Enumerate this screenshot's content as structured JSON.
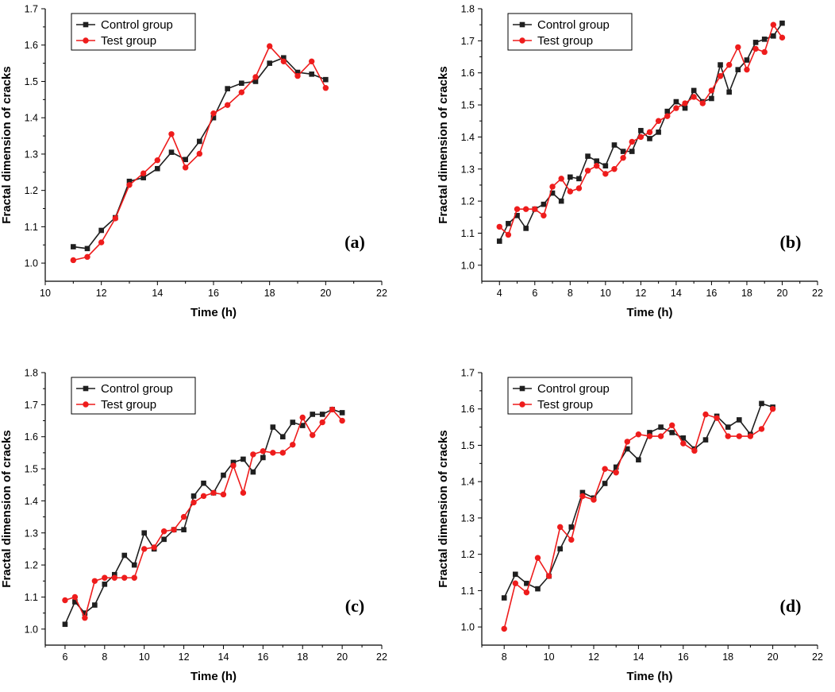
{
  "figure": {
    "background": "#ffffff"
  },
  "chart_data": [
    {
      "id": "a",
      "type": "line",
      "panel_label": "(a)",
      "xlabel": "Time (h)",
      "ylabel": "Fractal dimension of cracks",
      "xlim": [
        10,
        22
      ],
      "ylim": [
        0.95,
        1.7
      ],
      "xticks": [
        10,
        12,
        14,
        16,
        18,
        20,
        22
      ],
      "yticks": [
        1.0,
        1.1,
        1.2,
        1.3,
        1.4,
        1.5,
        1.6,
        1.7
      ],
      "ytick_labels": [
        "1.0",
        "1.1",
        "1.2",
        "1.3",
        "1.4",
        "1.5",
        "1.6",
        "1.7"
      ],
      "legend_position": "top-left",
      "series": [
        {
          "name": "Control group",
          "color": "#1f1f1f",
          "marker": "square",
          "x": [
            11,
            11.5,
            12,
            12.5,
            13,
            13.5,
            14,
            14.5,
            15,
            15.5,
            16,
            16.5,
            17,
            17.5,
            18,
            18.5,
            19,
            19.5,
            20
          ],
          "y": [
            1.045,
            1.04,
            1.09,
            1.125,
            1.225,
            1.235,
            1.26,
            1.305,
            1.285,
            1.335,
            1.4,
            1.48,
            1.495,
            1.5,
            1.55,
            1.565,
            1.525,
            1.52,
            1.505
          ]
        },
        {
          "name": "Test group",
          "color": "#ee1c1c",
          "marker": "circle",
          "x": [
            11,
            11.5,
            12,
            12.5,
            13,
            13.5,
            14,
            14.5,
            15,
            15.5,
            16,
            16.5,
            17,
            17.5,
            18,
            18.5,
            19,
            19.5,
            20
          ],
          "y": [
            1.008,
            1.017,
            1.057,
            1.123,
            1.215,
            1.247,
            1.283,
            1.355,
            1.263,
            1.301,
            1.412,
            1.435,
            1.47,
            1.512,
            1.597,
            1.555,
            1.515,
            1.555,
            1.482
          ]
        }
      ]
    },
    {
      "id": "b",
      "type": "line",
      "panel_label": "(b)",
      "xlabel": "Time (h)",
      "ylabel": "Fractal dimension of cracks",
      "xlim": [
        3,
        22
      ],
      "ylim": [
        0.95,
        1.8
      ],
      "xticks": [
        4,
        6,
        8,
        10,
        12,
        14,
        16,
        18,
        20,
        22
      ],
      "yticks": [
        1.0,
        1.1,
        1.2,
        1.3,
        1.4,
        1.5,
        1.6,
        1.7,
        1.8
      ],
      "ytick_labels": [
        "1.0",
        "1.1",
        "1.2",
        "1.3",
        "1.4",
        "1.5",
        "1.6",
        "1.7",
        "1.8"
      ],
      "legend_position": "top-left",
      "series": [
        {
          "name": "Control group",
          "color": "#1f1f1f",
          "marker": "square",
          "x": [
            4,
            4.5,
            5,
            5.5,
            6,
            6.5,
            7,
            7.5,
            8,
            8.5,
            9,
            9.5,
            10,
            10.5,
            11,
            11.5,
            12,
            12.5,
            13,
            13.5,
            14,
            14.5,
            15,
            15.5,
            16,
            16.5,
            17,
            17.5,
            18,
            18.5,
            19,
            19.5,
            20
          ],
          "y": [
            1.075,
            1.13,
            1.155,
            1.115,
            1.175,
            1.19,
            1.225,
            1.2,
            1.275,
            1.27,
            1.34,
            1.325,
            1.31,
            1.375,
            1.355,
            1.355,
            1.42,
            1.395,
            1.415,
            1.48,
            1.51,
            1.49,
            1.545,
            1.51,
            1.52,
            1.625,
            1.54,
            1.61,
            1.64,
            1.695,
            1.705,
            1.715,
            1.755
          ]
        },
        {
          "name": "Test group",
          "color": "#ee1c1c",
          "marker": "circle",
          "x": [
            4,
            4.5,
            5,
            5.5,
            6,
            6.5,
            7,
            7.5,
            8,
            8.5,
            9,
            9.5,
            10,
            10.5,
            11,
            11.5,
            12,
            12.5,
            13,
            13.5,
            14,
            14.5,
            15,
            15.5,
            16,
            16.5,
            17,
            17.5,
            18,
            18.5,
            19,
            19.5,
            20
          ],
          "y": [
            1.12,
            1.095,
            1.175,
            1.175,
            1.175,
            1.155,
            1.245,
            1.27,
            1.23,
            1.24,
            1.295,
            1.31,
            1.285,
            1.3,
            1.335,
            1.385,
            1.4,
            1.415,
            1.45,
            1.465,
            1.49,
            1.505,
            1.525,
            1.505,
            1.545,
            1.59,
            1.625,
            1.68,
            1.61,
            1.675,
            1.665,
            1.75,
            1.71
          ]
        }
      ]
    },
    {
      "id": "c",
      "type": "line",
      "panel_label": "(c)",
      "xlabel": "Time (h)",
      "ylabel": "Fractal dimension of cracks",
      "xlim": [
        5,
        22
      ],
      "ylim": [
        0.95,
        1.8
      ],
      "xticks": [
        6,
        8,
        10,
        12,
        14,
        16,
        18,
        20,
        22
      ],
      "yticks": [
        1.0,
        1.1,
        1.2,
        1.3,
        1.4,
        1.5,
        1.6,
        1.7,
        1.8
      ],
      "ytick_labels": [
        "1.0",
        "1.1",
        "1.2",
        "1.3",
        "1.4",
        "1.5",
        "1.6",
        "1.7",
        "1.8"
      ],
      "legend_position": "top-center",
      "series": [
        {
          "name": "Control group",
          "color": "#1f1f1f",
          "marker": "square",
          "x": [
            6,
            6.5,
            7,
            7.5,
            8,
            8.5,
            9,
            9.5,
            10,
            10.5,
            11,
            11.5,
            12,
            12.5,
            13,
            13.5,
            14,
            14.5,
            15,
            15.5,
            16,
            16.5,
            17,
            17.5,
            18,
            18.5,
            19,
            19.5,
            20
          ],
          "y": [
            1.015,
            1.085,
            1.05,
            1.075,
            1.14,
            1.17,
            1.23,
            1.2,
            1.3,
            1.25,
            1.28,
            1.31,
            1.31,
            1.415,
            1.455,
            1.425,
            1.48,
            1.52,
            1.53,
            1.49,
            1.535,
            1.63,
            1.6,
            1.645,
            1.635,
            1.67,
            1.67,
            1.685,
            1.675
          ]
        },
        {
          "name": "Test group",
          "color": "#ee1c1c",
          "marker": "circle",
          "x": [
            6,
            6.5,
            7,
            7.5,
            8,
            8.5,
            9,
            9.5,
            10,
            10.5,
            11,
            11.5,
            12,
            12.5,
            13,
            13.5,
            14,
            14.5,
            15,
            15.5,
            16,
            16.5,
            17,
            17.5,
            18,
            18.5,
            19,
            19.5,
            20
          ],
          "y": [
            1.09,
            1.1,
            1.035,
            1.15,
            1.16,
            1.16,
            1.16,
            1.16,
            1.25,
            1.255,
            1.305,
            1.31,
            1.35,
            1.395,
            1.415,
            1.425,
            1.42,
            1.51,
            1.425,
            1.545,
            1.555,
            1.55,
            1.55,
            1.575,
            1.66,
            1.605,
            1.645,
            1.685,
            1.65
          ]
        }
      ]
    },
    {
      "id": "d",
      "type": "line",
      "panel_label": "(d)",
      "xlabel": "Time (h)",
      "ylabel": "Fractal dimension of cracks",
      "xlim": [
        7,
        22
      ],
      "ylim": [
        0.95,
        1.7
      ],
      "xticks": [
        8,
        10,
        12,
        14,
        16,
        18,
        20,
        22
      ],
      "yticks": [
        1.0,
        1.1,
        1.2,
        1.3,
        1.4,
        1.5,
        1.6,
        1.7
      ],
      "ytick_labels": [
        "1.0",
        "1.1",
        "1.2",
        "1.3",
        "1.4",
        "1.5",
        "1.6",
        "1.7"
      ],
      "legend_position": "top-center",
      "series": [
        {
          "name": "Control group",
          "color": "#1f1f1f",
          "marker": "square",
          "x": [
            8,
            8.5,
            9,
            9.5,
            10,
            10.5,
            11,
            11.5,
            12,
            12.5,
            13,
            13.5,
            14,
            14.5,
            15,
            15.5,
            16,
            16.5,
            17,
            17.5,
            18,
            18.5,
            19,
            19.5,
            20
          ],
          "y": [
            1.08,
            1.145,
            1.12,
            1.105,
            1.14,
            1.215,
            1.275,
            1.37,
            1.355,
            1.395,
            1.44,
            1.49,
            1.46,
            1.535,
            1.55,
            1.535,
            1.52,
            1.49,
            1.515,
            1.58,
            1.55,
            1.57,
            1.53,
            1.615,
            1.605
          ]
        },
        {
          "name": "Test group",
          "color": "#ee1c1c",
          "marker": "circle",
          "x": [
            8,
            8.5,
            9,
            9.5,
            10,
            10.5,
            11,
            11.5,
            12,
            12.5,
            13,
            13.5,
            14,
            14.5,
            15,
            15.5,
            16,
            16.5,
            17,
            17.5,
            18,
            18.5,
            19,
            19.5,
            20
          ],
          "y": [
            0.995,
            1.12,
            1.095,
            1.19,
            1.14,
            1.275,
            1.24,
            1.36,
            1.35,
            1.435,
            1.425,
            1.51,
            1.53,
            1.525,
            1.525,
            1.555,
            1.505,
            1.485,
            1.585,
            1.575,
            1.525,
            1.525,
            1.525,
            1.545,
            1.6
          ]
        }
      ]
    }
  ]
}
